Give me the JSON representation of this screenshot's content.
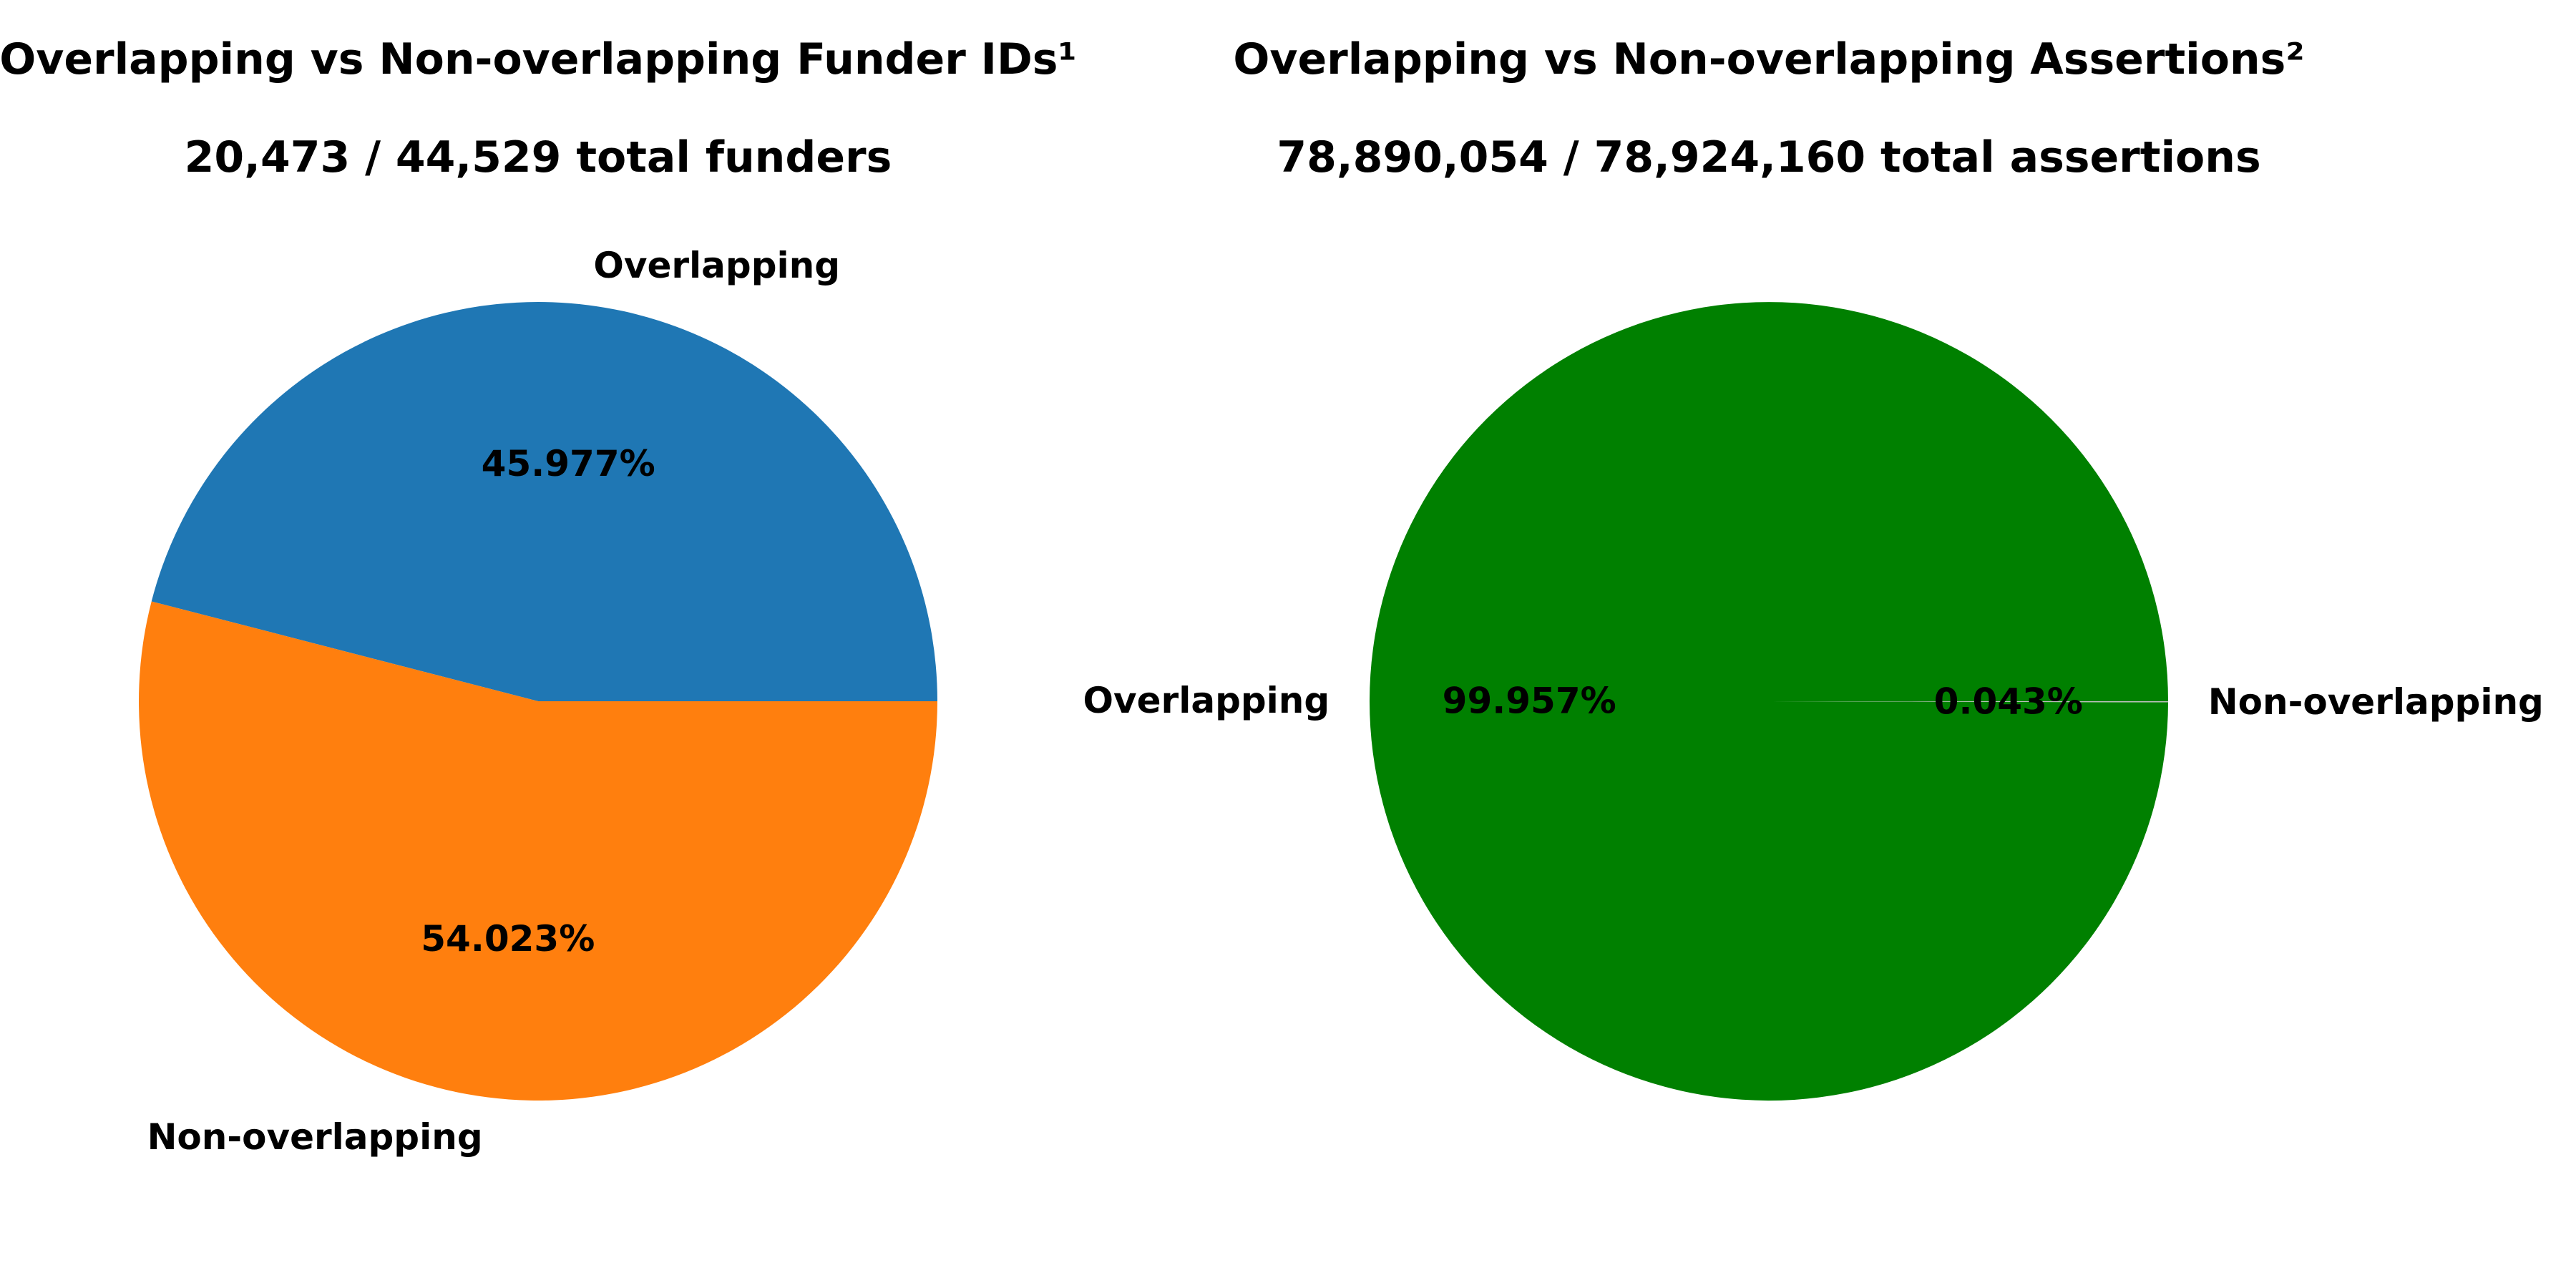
{
  "chart_data": [
    {
      "type": "pie",
      "title": "Overlapping vs Non-overlapping Funder IDs¹",
      "subtitle": "20,473 / 44,529 total funders",
      "series": [
        {
          "labels": [
            "Overlapping",
            "Non-overlapping"
          ],
          "values": [
            45.977,
            54.023
          ],
          "percent_labels": [
            "45.977%",
            "54.023%"
          ],
          "colors": [
            "#1f77b4",
            "#ff7f0e"
          ]
        }
      ]
    },
    {
      "type": "pie",
      "title": "Overlapping vs Non-overlapping Assertions²",
      "subtitle": "78,890,054 / 78,924,160 total assertions",
      "series": [
        {
          "labels": [
            "Overlapping",
            "Non-overlapping"
          ],
          "values": [
            99.957,
            0.043
          ],
          "percent_labels": [
            "99.957%",
            "0.043%"
          ],
          "colors": [
            "#008000",
            "#c0c0c0"
          ]
        }
      ]
    }
  ]
}
